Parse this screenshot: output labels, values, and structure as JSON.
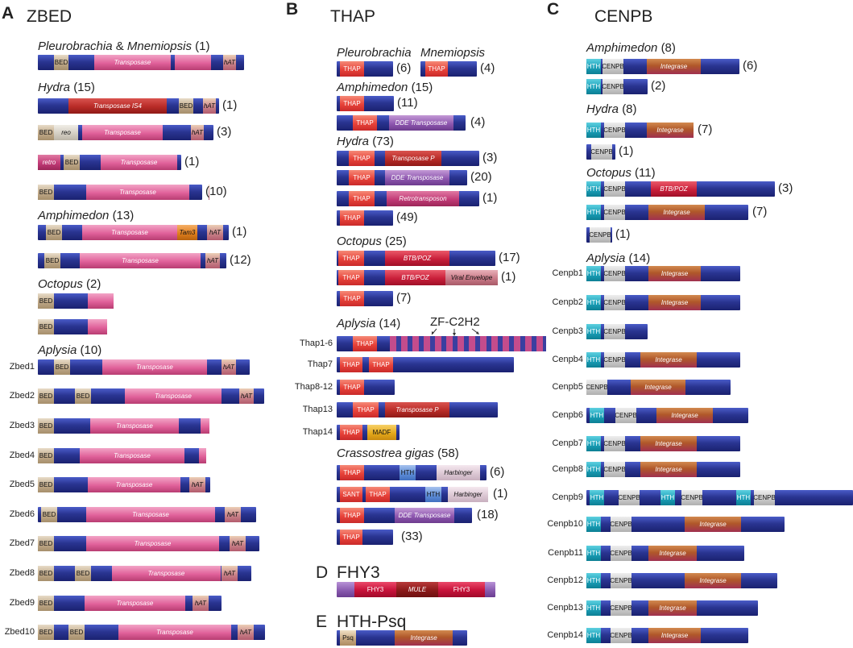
{
  "panels": {
    "a": {
      "letter": "A",
      "title": "ZBED"
    },
    "b": {
      "letter": "B",
      "title": "THAP"
    },
    "c": {
      "letter": "C",
      "title": "CENPB"
    },
    "d": {
      "letter": "D",
      "title": "FHY3"
    },
    "e": {
      "letter": "E",
      "title": "HTH-Psq"
    }
  },
  "zbed": {
    "pleuro": {
      "a": "Pleurobrachia",
      "amp": "&",
      "b": "Mnemiopsis",
      "count": "(1)"
    },
    "hydra": {
      "name": "Hydra",
      "count": "(15)",
      "r1": "(1)",
      "r2": "(3)",
      "r3": "(1)",
      "r4": "(10)"
    },
    "amphimedon": {
      "name": "Amphimedon",
      "count": "(13)",
      "r1": "(1)",
      "r2": "(12)"
    },
    "octopus": {
      "name": "Octopus",
      "count": "(2)"
    },
    "aplysia": {
      "name": "Aplysia",
      "count": "(10)"
    },
    "genes": [
      "Zbed1",
      "Zbed2",
      "Zbed3",
      "Zbed4",
      "Zbed5",
      "Zbed6",
      "Zbed7",
      "Zbed8",
      "Zbed9",
      "Zbed10"
    ]
  },
  "thap": {
    "pleuro": {
      "a": "Pleurobrachia",
      "a_count": "(6)",
      "b": "Mnemiopsis",
      "b_count": "(4)"
    },
    "amphimedon": {
      "name": "Amphimedon",
      "count": "(15)",
      "r1": "(11)",
      "r2": "(4)"
    },
    "hydra": {
      "name": "Hydra",
      "count": "(73)",
      "r1": "(3)",
      "r2": "(20)",
      "r3": "(1)",
      "r4": "(49)"
    },
    "octopus": {
      "name": "Octopus",
      "count": "(25)",
      "r1": "(17)",
      "r2": "(1)",
      "r3": "(7)"
    },
    "aplysia": {
      "name": "Aplysia",
      "count": "(14)",
      "zf": "ZF-C2H2"
    },
    "genes": [
      "Thap1-6",
      "Thap7",
      "Thap8-12",
      "Thap13",
      "Thap14"
    ],
    "crassostrea": {
      "name": "Crassostrea gigas",
      "count": "(58)",
      "r1": "(6)",
      "r2": "(1)",
      "r3": "(18)",
      "r4": "(33)"
    }
  },
  "cenpb": {
    "amphimedon": {
      "name": "Amphimedon",
      "count": "(8)",
      "r1": "(6)",
      "r2": "(2)"
    },
    "hydra": {
      "name": "Hydra",
      "count": "(8)",
      "r1": "(7)",
      "r2": "(1)"
    },
    "octopus": {
      "name": "Octopus",
      "count": "(11)",
      "r1": "(3)",
      "r2": "(7)",
      "r3": "(1)"
    },
    "aplysia": {
      "name": "Aplysia",
      "count": "(14)"
    },
    "genes": [
      "Cenpb1",
      "Cenpb2",
      "Cenpb3",
      "Cenpb4",
      "Cenpb5",
      "Cenpb6",
      "Cenpb7",
      "Cenpb8",
      "Cenpb9",
      "Cenpb10",
      "Cenpb11",
      "Cenpb12",
      "Cenpb13",
      "Cenpb14"
    ]
  },
  "domains": {
    "bed": "BED",
    "transposase": "Transposase",
    "transposase_is4": "Transposase IS4",
    "hat": "hAT",
    "reo": "reo",
    "retro": "retro",
    "tam3": "Tam3",
    "thap": "THAP",
    "dde": "DDE Transposase",
    "transposase_p": "Transposase P",
    "retrotransposon": "Retrotransposon",
    "btb": "BTB/POZ",
    "viral": "Viral Envelope",
    "madf": "MADF",
    "hth": "HTH",
    "harbinger": "Harbinger",
    "sant": "SANT",
    "cenpb": "CENPB",
    "integrase": "Integrase",
    "fhy3": "FHY3",
    "mule": "MULE",
    "psq": "Psq"
  }
}
